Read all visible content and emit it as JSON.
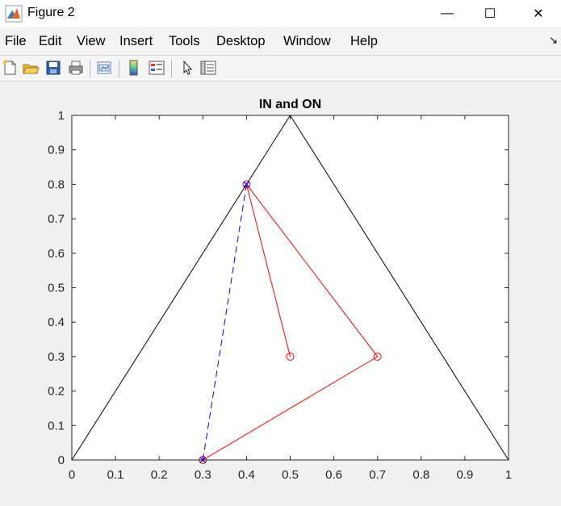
{
  "window": {
    "title": "Figure 2",
    "controls": {
      "minimize": "—",
      "maximize": "☐",
      "close": "✕"
    }
  },
  "menu": {
    "items": [
      "File",
      "Edit",
      "View",
      "Insert",
      "Tools",
      "Desktop",
      "Window",
      "Help"
    ]
  },
  "toolbar": {
    "icons": [
      "new-figure-icon",
      "open-file-icon",
      "save-icon",
      "print-icon",
      "link-plot-icon",
      "colorbar-icon",
      "legend-icon",
      "pointer-icon",
      "property-inspector-icon"
    ]
  },
  "chart_data": {
    "type": "line",
    "title": "IN and ON",
    "xlabel": "",
    "ylabel": "",
    "xlim": [
      0,
      1
    ],
    "ylim": [
      0,
      1
    ],
    "xticks": [
      0,
      0.1,
      0.2,
      0.3,
      0.4,
      0.5,
      0.6,
      0.7,
      0.8,
      0.9,
      1
    ],
    "yticks": [
      0,
      0.1,
      0.2,
      0.3,
      0.4,
      0.5,
      0.6,
      0.7,
      0.8,
      0.9,
      1
    ],
    "xtick_labels": [
      "0",
      "0.1",
      "0.2",
      "0.3",
      "0.4",
      "0.5",
      "0.6",
      "0.7",
      "0.8",
      "0.9",
      "1"
    ],
    "ytick_labels": [
      "0",
      "0.1",
      "0.2",
      "0.3",
      "0.4",
      "0.5",
      "0.6",
      "0.7",
      "0.8",
      "0.9",
      "1"
    ],
    "grid": false,
    "series": [
      {
        "style": "solid",
        "color": "#000000",
        "marker": "none",
        "x": [
          0,
          0.5,
          1
        ],
        "y": [
          0,
          1,
          0
        ]
      },
      {
        "style": "solid",
        "color": "#ff0000",
        "marker": "circle",
        "x": [
          0.5,
          0.4,
          0.7,
          0.3
        ],
        "y": [
          0.3,
          0.8,
          0.3,
          0
        ]
      },
      {
        "style": "dashed",
        "color": "#0000ff",
        "marker": "x",
        "x": [
          0.3,
          0.4
        ],
        "y": [
          0,
          0.8
        ]
      }
    ]
  }
}
